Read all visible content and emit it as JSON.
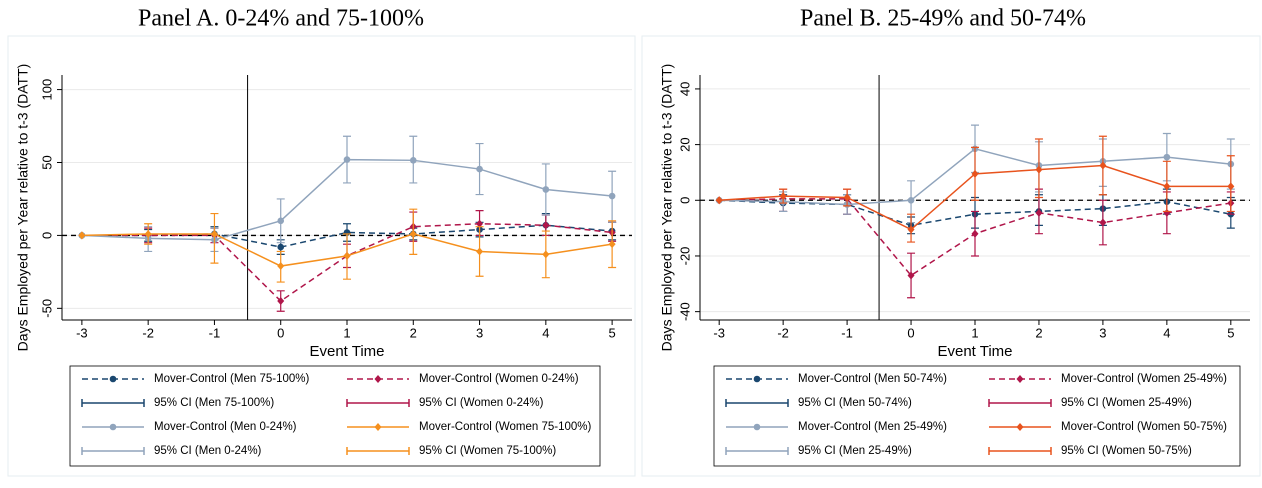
{
  "chart_data": [
    {
      "type": "line",
      "title": "Panel A. 0-24% and 75-100%",
      "x_label": "Event Time",
      "y_label": "Days Employed per Year relative to t-3 (DATT)",
      "x": [
        -3,
        -2,
        -1,
        0,
        1,
        2,
        3,
        4,
        5
      ],
      "xlim": [
        -3.3,
        5.3
      ],
      "xticks": [
        -3,
        -2,
        -1,
        0,
        1,
        2,
        3,
        4,
        5
      ],
      "ylim": [
        -58,
        110
      ],
      "yticks": [
        -50,
        0,
        50,
        100
      ],
      "grid": true,
      "xline": -0.5,
      "yline": 0,
      "series": [
        {
          "name": "Mover-Control (Men 75-100%)",
          "ci_name": "95% CI (Men 75-100%)",
          "color": "#1a476f",
          "dash": true,
          "marker": "circle",
          "values": [
            0,
            0,
            1,
            -8,
            2,
            1,
            4,
            7,
            3
          ],
          "ci_low": [
            null,
            -4,
            -3,
            -13,
            -4,
            -3,
            -1,
            0,
            -3
          ],
          "ci_high": [
            null,
            4,
            6,
            -3,
            8,
            5,
            9,
            15,
            9
          ]
        },
        {
          "name": "Mover-Control (Women 0-24%)",
          "ci_name": "95% CI (Women 0-24%)",
          "color": "#b0164a",
          "dash": true,
          "marker": "diamond",
          "values": [
            0,
            0,
            0,
            -45,
            -14,
            6,
            8,
            7,
            2
          ],
          "ci_low": [
            null,
            -5,
            -5,
            -52,
            -22,
            -4,
            0,
            0,
            -4
          ],
          "ci_high": [
            null,
            5,
            5,
            -38,
            -6,
            16,
            17,
            14,
            9
          ]
        },
        {
          "name": "Mover-Control (Men 0-24%)",
          "ci_name": "95% CI (Men 0-24%)",
          "color": "#90a4bc",
          "dash": false,
          "marker": "circle",
          "values": [
            0,
            -2,
            -3,
            10,
            52,
            51.5,
            45.5,
            31.5,
            27
          ],
          "ci_low": [
            null,
            -11,
            -11,
            -5,
            36,
            36,
            28,
            14,
            9
          ],
          "ci_high": [
            null,
            6,
            5,
            25,
            68,
            68,
            63,
            49,
            44
          ]
        },
        {
          "name": "Mover-Control (Women 75-100%)",
          "ci_name": "95% CI (Women 75-100%)",
          "color": "#f5901e",
          "dash": false,
          "marker": "diamond",
          "values": [
            0,
            1,
            1,
            -21,
            -14,
            1,
            -11,
            -13,
            -6
          ],
          "ci_low": [
            null,
            -6,
            -19,
            -32,
            -30,
            -13,
            -28,
            -29,
            -22
          ],
          "ci_high": [
            null,
            8,
            15,
            -11,
            1,
            18,
            6,
            3,
            10
          ]
        }
      ]
    },
    {
      "type": "line",
      "title": "Panel B. 25-49% and 50-74%",
      "x_label": "Event Time",
      "y_label": "Days Employed per Year relative to t-3 (DATT)",
      "x": [
        -3,
        -2,
        -1,
        0,
        1,
        2,
        3,
        4,
        5
      ],
      "xlim": [
        -3.3,
        5.3
      ],
      "xticks": [
        -3,
        -2,
        -1,
        0,
        1,
        2,
        3,
        4,
        5
      ],
      "ylim": [
        -43,
        45
      ],
      "yticks": [
        -40,
        -20,
        0,
        20,
        40
      ],
      "grid": true,
      "xline": -0.5,
      "yline": 0,
      "series": [
        {
          "name": "Mover-Control (Men 50-74%)",
          "ci_name": "95% CI (Men 50-74%)",
          "color": "#1a476f",
          "dash": true,
          "marker": "circle",
          "values": [
            0,
            -1,
            -1.5,
            -9,
            -5,
            -4,
            -3,
            -0.5,
            -5
          ],
          "ci_low": [
            null,
            -4,
            -5,
            -12,
            -10,
            -9,
            -9,
            -5,
            -10
          ],
          "ci_high": [
            null,
            2,
            2,
            -6,
            1,
            2,
            2,
            4,
            1
          ]
        },
        {
          "name": "Mover-Control (Women 25-49%)",
          "ci_name": "95% CI (Women 25-49%)",
          "color": "#b0164a",
          "dash": true,
          "marker": "diamond",
          "values": [
            0,
            0.5,
            0.5,
            -27,
            -12,
            -4.5,
            -8,
            -4.5,
            -1
          ],
          "ci_low": [
            null,
            -4,
            -5,
            -35,
            -20,
            -12,
            -16,
            -12,
            -5
          ],
          "ci_high": [
            null,
            4,
            4,
            -19,
            -4,
            4,
            0,
            3,
            3
          ]
        },
        {
          "name": "Mover-Control (Men 25-49%)",
          "ci_name": "95% CI (Men 25-49%)",
          "color": "#90a4bc",
          "dash": false,
          "marker": "circle",
          "values": [
            0,
            -0.5,
            -1.5,
            0,
            18.5,
            12.5,
            14,
            15.5,
            13
          ],
          "ci_low": [
            null,
            -4,
            -5,
            -8,
            10,
            3,
            5,
            7,
            4
          ],
          "ci_high": [
            null,
            3,
            2,
            7,
            27,
            21,
            22,
            24,
            22
          ]
        },
        {
          "name": "Mover-Control (Women 50-75%)",
          "ci_name": "95% CI (Women 50-75%)",
          "color": "#e8531d",
          "dash": false,
          "marker": "diamond",
          "values": [
            0,
            1.5,
            1,
            -10.5,
            9.5,
            11,
            12.5,
            5,
            5
          ],
          "ci_low": [
            null,
            -1,
            -2,
            -15,
            0,
            1,
            2,
            -4,
            -4
          ],
          "ci_high": [
            null,
            4,
            4,
            -5,
            19,
            22,
            23,
            14,
            16
          ]
        }
      ]
    }
  ]
}
